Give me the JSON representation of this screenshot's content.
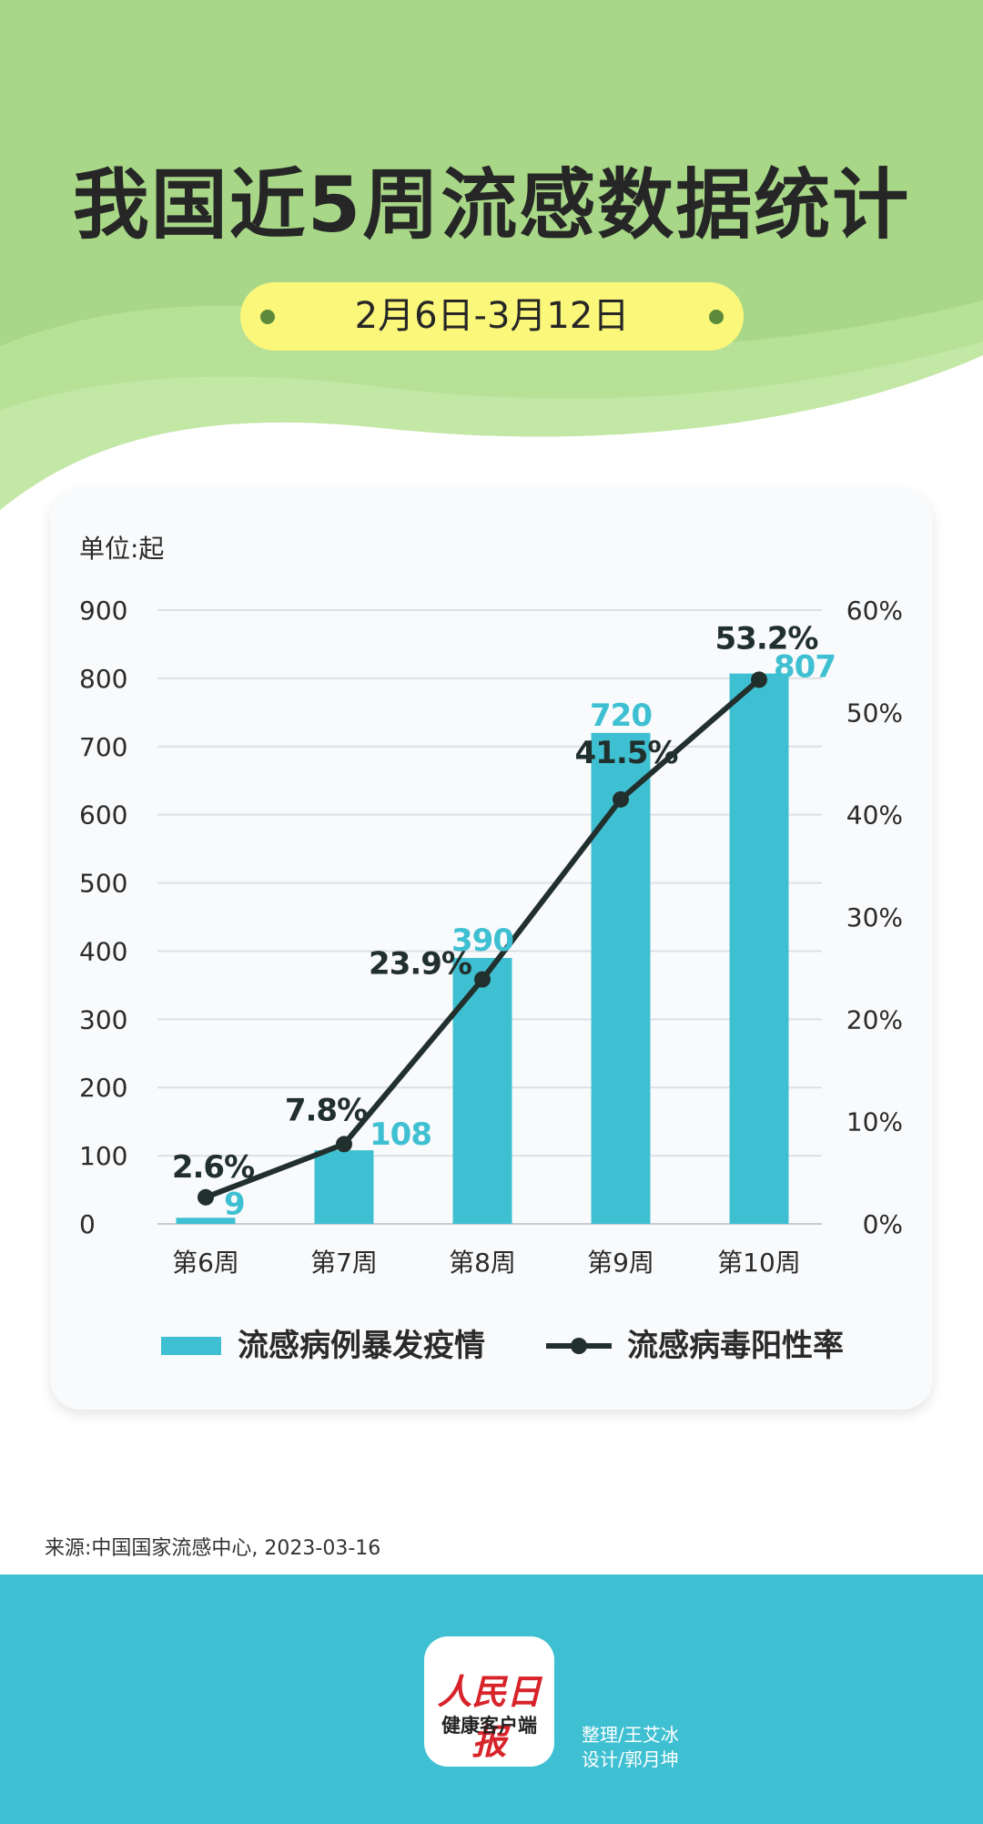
{
  "header": {
    "title": "我国近5周流感数据统计",
    "date_range": "2月6日-3月12日"
  },
  "colors": {
    "bar": "#3fc0d2",
    "line": "#22302d",
    "header_green": "#a8d887",
    "pill_yellow": "#fbf77b",
    "footer": "#3fc0d2"
  },
  "chart_data": {
    "type": "bar",
    "unit_label": "单位:起",
    "categories": [
      "第6周",
      "第7周",
      "第8周",
      "第9周",
      "第10周"
    ],
    "series": [
      {
        "name": "流感病例暴发疫情",
        "type": "bar",
        "axis": "left",
        "values": [
          9,
          108,
          390,
          720,
          807
        ],
        "labels": [
          "9",
          "108",
          "390",
          "720",
          "807"
        ]
      },
      {
        "name": "流感病毒阳性率",
        "type": "line",
        "axis": "right",
        "values": [
          2.6,
          7.8,
          23.9,
          41.5,
          53.2
        ],
        "labels": [
          "2.6%",
          "7.8%",
          "23.9%",
          "41.5%",
          "53.2%"
        ]
      }
    ],
    "left_axis": {
      "ylim": [
        0,
        900
      ],
      "ticks": [
        "0",
        "100",
        "200",
        "300",
        "400",
        "500",
        "600",
        "700",
        "800",
        "900"
      ]
    },
    "right_axis": {
      "ylim": [
        0,
        60
      ],
      "ticks": [
        "0%",
        "10%",
        "20%",
        "30%",
        "40%",
        "50%",
        "60%"
      ]
    },
    "grid": true,
    "legend_position": "bottom"
  },
  "footer": {
    "source": "来源:中国国家流感中心, 2023-03-16",
    "logo_brand": "人民日报",
    "logo_sub": "健康客户端",
    "credit_editor": "整理/王艾冰",
    "credit_design": "设计/郭月坤"
  }
}
